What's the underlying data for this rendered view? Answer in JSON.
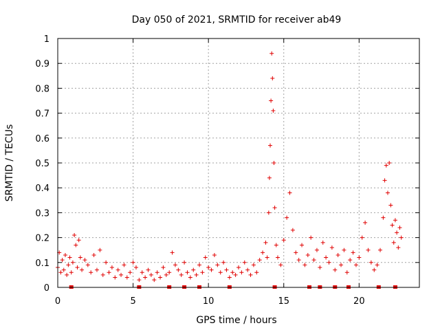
{
  "chart_data": {
    "type": "scatter",
    "title": "Day 050 of 2021, SRMTID for receiver ab49",
    "xlabel": "GPS time / hours",
    "ylabel": "SRMTID / TECUs",
    "xlim": [
      0,
      24
    ],
    "ylim": [
      0,
      1
    ],
    "xticks": [
      0,
      5,
      10,
      15,
      20
    ],
    "xtick_labels": [
      "0",
      "5",
      "10",
      "15",
      "20"
    ],
    "yticks": [
      0,
      0.1,
      0.2,
      0.3,
      0.4,
      0.5,
      0.6,
      0.7,
      0.8,
      0.9,
      1
    ],
    "ytick_labels": [
      "0",
      "0.1",
      "0.2",
      "0.3",
      "0.4",
      "0.5",
      "0.6",
      "0.7",
      "0.8",
      "0.9",
      "1"
    ],
    "grid": true,
    "marker": "+",
    "marker_color": "#e00000",
    "series": [
      {
        "name": "SRMTID",
        "points": [
          [
            0.0,
            0.08
          ],
          [
            0.1,
            0.14
          ],
          [
            0.2,
            0.06
          ],
          [
            0.3,
            0.11
          ],
          [
            0.4,
            0.07
          ],
          [
            0.5,
            0.13
          ],
          [
            0.6,
            0.05
          ],
          [
            0.7,
            0.09
          ],
          [
            0.8,
            0.12
          ],
          [
            0.9,
            0.06
          ],
          [
            1.0,
            0.1
          ],
          [
            1.1,
            0.21
          ],
          [
            1.2,
            0.17
          ],
          [
            1.3,
            0.08
          ],
          [
            1.4,
            0.19
          ],
          [
            1.5,
            0.12
          ],
          [
            1.6,
            0.07
          ],
          [
            1.8,
            0.11
          ],
          [
            2.0,
            0.09
          ],
          [
            2.2,
            0.06
          ],
          [
            2.4,
            0.13
          ],
          [
            2.6,
            0.07
          ],
          [
            2.8,
            0.15
          ],
          [
            3.0,
            0.05
          ],
          [
            3.2,
            0.1
          ],
          [
            3.4,
            0.06
          ],
          [
            3.6,
            0.08
          ],
          [
            3.8,
            0.04
          ],
          [
            4.0,
            0.07
          ],
          [
            4.2,
            0.05
          ],
          [
            4.4,
            0.09
          ],
          [
            4.6,
            0.04
          ],
          [
            4.8,
            0.06
          ],
          [
            5.0,
            0.1
          ],
          [
            5.2,
            0.08
          ],
          [
            5.4,
            0.03
          ],
          [
            5.6,
            0.06
          ],
          [
            5.8,
            0.04
          ],
          [
            6.0,
            0.07
          ],
          [
            6.2,
            0.05
          ],
          [
            6.4,
            0.03
          ],
          [
            6.6,
            0.06
          ],
          [
            6.8,
            0.04
          ],
          [
            7.0,
            0.08
          ],
          [
            7.2,
            0.05
          ],
          [
            7.4,
            0.06
          ],
          [
            7.6,
            0.14
          ],
          [
            7.8,
            0.09
          ],
          [
            8.0,
            0.07
          ],
          [
            8.2,
            0.05
          ],
          [
            8.4,
            0.1
          ],
          [
            8.6,
            0.06
          ],
          [
            8.8,
            0.04
          ],
          [
            9.0,
            0.07
          ],
          [
            9.2,
            0.05
          ],
          [
            9.4,
            0.09
          ],
          [
            9.6,
            0.06
          ],
          [
            9.8,
            0.12
          ],
          [
            10.0,
            0.08
          ],
          [
            10.2,
            0.07
          ],
          [
            10.4,
            0.13
          ],
          [
            10.6,
            0.09
          ],
          [
            10.8,
            0.06
          ],
          [
            11.0,
            0.1
          ],
          [
            11.2,
            0.07
          ],
          [
            11.4,
            0.04
          ],
          [
            11.6,
            0.06
          ],
          [
            11.8,
            0.05
          ],
          [
            12.0,
            0.08
          ],
          [
            12.2,
            0.06
          ],
          [
            12.4,
            0.1
          ],
          [
            12.6,
            0.07
          ],
          [
            12.8,
            0.05
          ],
          [
            13.0,
            0.09
          ],
          [
            13.2,
            0.06
          ],
          [
            13.4,
            0.11
          ],
          [
            13.6,
            0.14
          ],
          [
            13.8,
            0.18
          ],
          [
            13.9,
            0.12
          ],
          [
            14.0,
            0.3
          ],
          [
            14.05,
            0.44
          ],
          [
            14.1,
            0.57
          ],
          [
            14.15,
            0.75
          ],
          [
            14.2,
            0.94
          ],
          [
            14.25,
            0.84
          ],
          [
            14.3,
            0.71
          ],
          [
            14.35,
            0.5
          ],
          [
            14.4,
            0.32
          ],
          [
            14.5,
            0.17
          ],
          [
            14.6,
            0.12
          ],
          [
            14.8,
            0.09
          ],
          [
            15.0,
            0.19
          ],
          [
            15.2,
            0.28
          ],
          [
            15.4,
            0.38
          ],
          [
            15.6,
            0.23
          ],
          [
            15.8,
            0.14
          ],
          [
            16.0,
            0.11
          ],
          [
            16.2,
            0.17
          ],
          [
            16.4,
            0.09
          ],
          [
            16.6,
            0.13
          ],
          [
            16.8,
            0.2
          ],
          [
            17.0,
            0.11
          ],
          [
            17.2,
            0.15
          ],
          [
            17.4,
            0.08
          ],
          [
            17.6,
            0.18
          ],
          [
            17.8,
            0.12
          ],
          [
            18.0,
            0.1
          ],
          [
            18.2,
            0.16
          ],
          [
            18.4,
            0.07
          ],
          [
            18.6,
            0.13
          ],
          [
            18.8,
            0.09
          ],
          [
            19.0,
            0.15
          ],
          [
            19.2,
            0.06
          ],
          [
            19.4,
            0.11
          ],
          [
            19.6,
            0.14
          ],
          [
            19.8,
            0.09
          ],
          [
            20.0,
            0.12
          ],
          [
            20.2,
            0.2
          ],
          [
            20.4,
            0.26
          ],
          [
            20.6,
            0.15
          ],
          [
            20.8,
            0.1
          ],
          [
            21.0,
            0.07
          ],
          [
            21.2,
            0.09
          ],
          [
            21.4,
            0.15
          ],
          [
            21.6,
            0.28
          ],
          [
            21.7,
            0.43
          ],
          [
            21.8,
            0.49
          ],
          [
            21.9,
            0.38
          ],
          [
            22.0,
            0.5
          ],
          [
            22.1,
            0.33
          ],
          [
            22.2,
            0.25
          ],
          [
            22.3,
            0.18
          ],
          [
            22.4,
            0.27
          ],
          [
            22.5,
            0.22
          ],
          [
            22.6,
            0.16
          ],
          [
            22.7,
            0.24
          ],
          [
            22.8,
            0.2
          ]
        ]
      }
    ],
    "gap_markers_x": [
      0.9,
      5.4,
      7.4,
      8.4,
      9.4,
      11.4,
      14.4,
      16.7,
      17.4,
      18.4,
      19.3,
      21.3,
      22.4
    ]
  }
}
